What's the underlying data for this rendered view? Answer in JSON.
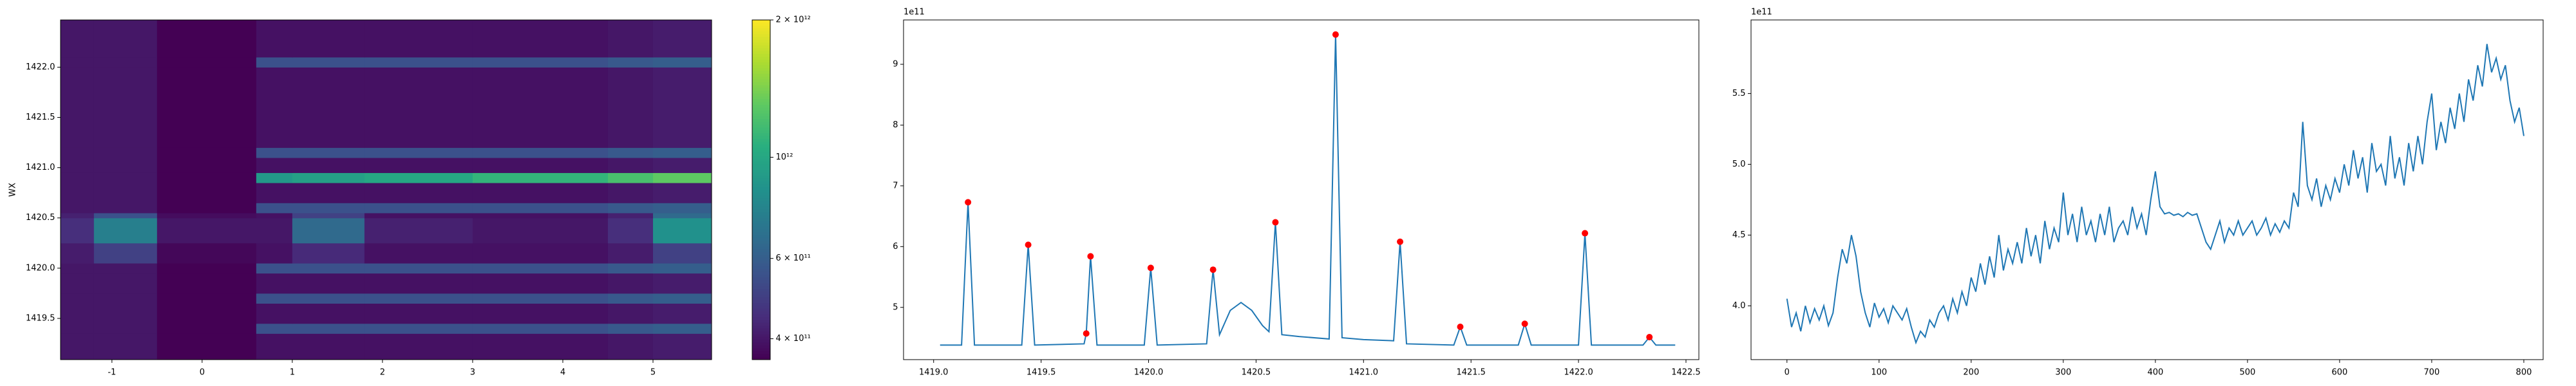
{
  "chart_data": [
    {
      "type": "heatmap",
      "ylabel": "WX",
      "colormap": "viridis",
      "xlim": [
        -1.57,
        5.65
      ],
      "xticks": [
        -1,
        0,
        1,
        2,
        3,
        4,
        5
      ],
      "ylim": [
        1419.09,
        1422.47
      ],
      "yticks": [
        1419.5,
        {
          "value": 1420,
          "label": "1420.0"
        },
        1420.5,
        {
          "value": 1421,
          "label": "1421.0"
        },
        1421.5,
        {
          "value": 1422,
          "label": "1422.0"
        }
      ],
      "x_edges": [
        -1.57,
        -1.2,
        -0.5,
        0.6,
        1.0,
        1.8,
        3.0,
        4.5,
        5.0,
        5.65
      ],
      "y_edges": [
        1419.09,
        1419.35,
        1419.45,
        1419.65,
        1419.75,
        1419.95,
        1420.05,
        1420.25,
        1420.5,
        1420.55,
        1420.65,
        1420.85,
        1420.95,
        1421.1,
        1421.2,
        1422.0,
        1422.1,
        1422.47
      ],
      "z": [
        [
          400000000000.0,
          400000000000.0,
          360000000000.0,
          390000000000.0,
          390000000000.0,
          390000000000.0,
          390000000000.0,
          400000000000.0,
          410000000000.0
        ],
        [
          400000000000.0,
          400000000000.0,
          360000000000.0,
          550000000000.0,
          550000000000.0,
          550000000000.0,
          550000000000.0,
          580000000000.0,
          600000000000.0
        ],
        [
          400000000000.0,
          400000000000.0,
          360000000000.0,
          390000000000.0,
          390000000000.0,
          390000000000.0,
          390000000000.0,
          400000000000.0,
          410000000000.0
        ],
        [
          400000000000.0,
          400000000000.0,
          360000000000.0,
          550000000000.0,
          550000000000.0,
          550000000000.0,
          550000000000.0,
          580000000000.0,
          600000000000.0
        ],
        [
          400000000000.0,
          400000000000.0,
          360000000000.0,
          390000000000.0,
          390000000000.0,
          390000000000.0,
          390000000000.0,
          400000000000.0,
          410000000000.0
        ],
        [
          400000000000.0,
          400000000000.0,
          360000000000.0,
          550000000000.0,
          550000000000.0,
          550000000000.0,
          550000000000.0,
          580000000000.0,
          600000000000.0
        ],
        [
          410000000000.0,
          500000000000.0,
          370000000000.0,
          390000000000.0,
          440000000000.0,
          390000000000.0,
          390000000000.0,
          410000000000.0,
          500000000000.0
        ],
        [
          450000000000.0,
          750000000000.0,
          400000000000.0,
          400000000000.0,
          650000000000.0,
          420000000000.0,
          400000000000.0,
          450000000000.0,
          850000000000.0
        ],
        [
          420000000000.0,
          550000000000.0,
          380000000000.0,
          390000000000.0,
          500000000000.0,
          390000000000.0,
          390000000000.0,
          420000000000.0,
          650000000000.0
        ],
        [
          400000000000.0,
          400000000000.0,
          360000000000.0,
          550000000000.0,
          550000000000.0,
          550000000000.0,
          550000000000.0,
          580000000000.0,
          600000000000.0
        ],
        [
          400000000000.0,
          400000000000.0,
          360000000000.0,
          390000000000.0,
          390000000000.0,
          390000000000.0,
          390000000000.0,
          400000000000.0,
          410000000000.0
        ],
        [
          400000000000.0,
          400000000000.0,
          360000000000.0,
          900000000000.0,
          950000000000.0,
          1000000000000.0,
          1100000000000.0,
          1200000000000.0,
          1300000000000.0
        ],
        [
          400000000000.0,
          400000000000.0,
          360000000000.0,
          390000000000.0,
          390000000000.0,
          390000000000.0,
          390000000000.0,
          400000000000.0,
          410000000000.0
        ],
        [
          400000000000.0,
          400000000000.0,
          360000000000.0,
          550000000000.0,
          550000000000.0,
          550000000000.0,
          550000000000.0,
          580000000000.0,
          600000000000.0
        ],
        [
          400000000000.0,
          400000000000.0,
          360000000000.0,
          390000000000.0,
          390000000000.0,
          390000000000.0,
          390000000000.0,
          400000000000.0,
          410000000000.0
        ],
        [
          400000000000.0,
          400000000000.0,
          360000000000.0,
          550000000000.0,
          550000000000.0,
          550000000000.0,
          550000000000.0,
          580000000000.0,
          600000000000.0
        ],
        [
          400000000000.0,
          400000000000.0,
          360000000000.0,
          390000000000.0,
          390000000000.0,
          390000000000.0,
          390000000000.0,
          400000000000.0,
          410000000000.0
        ]
      ],
      "colorbar": {
        "scale": "log",
        "ylim": [
          360000000000.0,
          2000000000000.0
        ],
        "yticks": [
          {
            "value": 400000000000.0,
            "label": "4 × 10¹¹"
          },
          {
            "value": 600000000000.0,
            "label": "6 × 10¹¹"
          },
          {
            "value": 1000000000000.0,
            "label": "10¹²"
          },
          {
            "value": 2000000000000.0,
            "label": "2 × 10¹²"
          }
        ]
      }
    },
    {
      "type": "line",
      "y_offset_label": "1e11",
      "xlim": [
        1418.86,
        1422.56
      ],
      "xticks": [
        {
          "value": 1419,
          "label": "1419.0"
        },
        1419.5,
        {
          "value": 1420,
          "label": "1420.0"
        },
        1420.5,
        {
          "value": 1421,
          "label": "1421.0"
        },
        1421.5,
        {
          "value": 1422,
          "label": "1422.0"
        },
        1422.5
      ],
      "ylim": [
        4.14,
        9.73
      ],
      "yticks": [
        5,
        6,
        7,
        8,
        9
      ],
      "series": [
        {
          "color": "#1f77b4",
          "x": [
            1419.03,
            1419.13,
            1419.16,
            1419.19,
            1419.41,
            1419.44,
            1419.47,
            1419.7,
            1419.71,
            1419.73,
            1419.76,
            1419.98,
            1420.01,
            1420.04,
            1420.27,
            1420.3,
            1420.33,
            1420.38,
            1420.43,
            1420.48,
            1420.53,
            1420.56,
            1420.59,
            1420.62,
            1420.7,
            1420.84,
            1420.87,
            1420.9,
            1421.0,
            1421.14,
            1421.17,
            1421.2,
            1421.42,
            1421.45,
            1421.48,
            1421.72,
            1421.75,
            1421.78,
            1422.0,
            1422.03,
            1422.06,
            1422.3,
            1422.33,
            1422.36,
            1422.45
          ],
          "values": [
            4.38,
            4.38,
            6.73,
            4.38,
            4.38,
            6.03,
            4.38,
            4.4,
            4.57,
            5.84,
            4.38,
            4.38,
            5.65,
            4.38,
            4.4,
            5.62,
            4.55,
            4.95,
            5.08,
            4.95,
            4.7,
            4.6,
            6.4,
            4.55,
            4.52,
            4.48,
            9.49,
            4.5,
            4.47,
            4.45,
            6.08,
            4.4,
            4.38,
            4.68,
            4.38,
            4.38,
            4.73,
            4.38,
            4.38,
            6.22,
            4.38,
            4.38,
            4.51,
            4.38,
            4.38
          ]
        },
        {
          "color": "red",
          "mode": "markers",
          "x": [
            1419.16,
            1419.44,
            1419.73,
            1419.71,
            1420.01,
            1420.3,
            1420.59,
            1420.87,
            1421.17,
            1421.45,
            1421.75,
            1422.03,
            1422.33
          ],
          "values": [
            6.73,
            6.03,
            5.84,
            4.57,
            5.65,
            5.62,
            6.4,
            9.49,
            6.08,
            4.68,
            4.73,
            6.22,
            4.51
          ]
        }
      ]
    },
    {
      "type": "line",
      "y_offset_label": "1e11",
      "xlim": [
        -39,
        821
      ],
      "xticks": [
        0,
        100,
        200,
        300,
        400,
        500,
        600,
        700,
        800
      ],
      "ylim": [
        3.62,
        6.02
      ],
      "yticks": [
        {
          "value": 4,
          "label": "4.0"
        },
        4.5,
        {
          "value": 5,
          "label": "5.0"
        },
        5.5
      ],
      "series": [
        {
          "color": "#1f77b4",
          "x": [
            0,
            5,
            10,
            15,
            20,
            25,
            30,
            35,
            40,
            45,
            50,
            55,
            60,
            65,
            70,
            75,
            80,
            85,
            90,
            95,
            100,
            105,
            110,
            115,
            120,
            125,
            130,
            135,
            140,
            145,
            150,
            155,
            160,
            165,
            170,
            175,
            180,
            185,
            190,
            195,
            200,
            205,
            210,
            215,
            220,
            225,
            230,
            235,
            240,
            245,
            250,
            255,
            260,
            265,
            270,
            275,
            280,
            285,
            290,
            295,
            300,
            305,
            310,
            315,
            320,
            325,
            330,
            335,
            340,
            345,
            350,
            355,
            360,
            365,
            370,
            375,
            380,
            385,
            390,
            395,
            400,
            405,
            410,
            415,
            420,
            425,
            430,
            435,
            440,
            445,
            450,
            455,
            460,
            465,
            470,
            475,
            480,
            485,
            490,
            495,
            500,
            505,
            510,
            515,
            520,
            525,
            530,
            535,
            540,
            545,
            550,
            555,
            560,
            565,
            570,
            575,
            580,
            585,
            590,
            595,
            600,
            605,
            610,
            615,
            620,
            625,
            630,
            635,
            640,
            645,
            650,
            655,
            660,
            665,
            670,
            675,
            680,
            685,
            690,
            695,
            700,
            705,
            710,
            715,
            720,
            725,
            730,
            735,
            740,
            745,
            750,
            755,
            760,
            765,
            770,
            775,
            780,
            785,
            790,
            795,
            800
          ],
          "values": [
            4.05,
            3.85,
            3.95,
            3.82,
            4.0,
            3.88,
            3.98,
            3.9,
            4.0,
            3.86,
            3.95,
            4.2,
            4.4,
            4.3,
            4.5,
            4.35,
            4.1,
            3.95,
            3.85,
            4.02,
            3.92,
            3.98,
            3.88,
            4.0,
            3.95,
            3.9,
            3.98,
            3.85,
            3.74,
            3.82,
            3.78,
            3.9,
            3.85,
            3.95,
            4.0,
            3.9,
            4.05,
            3.95,
            4.1,
            4.0,
            4.2,
            4.1,
            4.3,
            4.15,
            4.35,
            4.2,
            4.5,
            4.25,
            4.4,
            4.3,
            4.45,
            4.3,
            4.55,
            4.35,
            4.5,
            4.3,
            4.6,
            4.4,
            4.55,
            4.45,
            4.8,
            4.5,
            4.65,
            4.45,
            4.7,
            4.5,
            4.6,
            4.45,
            4.65,
            4.5,
            4.7,
            4.45,
            4.55,
            4.6,
            4.5,
            4.7,
            4.55,
            4.65,
            4.5,
            4.75,
            4.95,
            4.7,
            4.65,
            4.66,
            4.64,
            4.65,
            4.63,
            4.66,
            4.64,
            4.65,
            4.55,
            4.45,
            4.4,
            4.5,
            4.6,
            4.45,
            4.55,
            4.5,
            4.6,
            4.5,
            4.55,
            4.6,
            4.5,
            4.55,
            4.62,
            4.5,
            4.58,
            4.52,
            4.6,
            4.55,
            4.8,
            4.7,
            5.3,
            4.85,
            4.75,
            4.9,
            4.7,
            4.85,
            4.75,
            4.9,
            4.8,
            5.0,
            4.85,
            5.1,
            4.9,
            5.05,
            4.8,
            5.15,
            4.95,
            5.0,
            4.85,
            5.2,
            4.9,
            5.05,
            4.85,
            5.15,
            4.95,
            5.2,
            5.0,
            5.3,
            5.5,
            5.1,
            5.3,
            5.15,
            5.4,
            5.25,
            5.5,
            5.3,
            5.6,
            5.45,
            5.7,
            5.55,
            5.85,
            5.65,
            5.75,
            5.6,
            5.7,
            5.45,
            5.3,
            5.4,
            5.2
          ]
        }
      ]
    }
  ]
}
